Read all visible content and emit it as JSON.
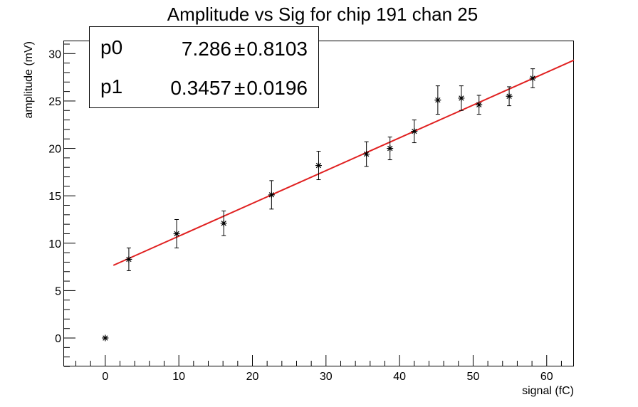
{
  "chart_data": {
    "type": "scatter",
    "title": "Amplitude vs Sig for chip 191 chan 25",
    "xlabel": "signal (fC)",
    "ylabel": "amplitude (mV)",
    "xlim": [
      -5.6,
      63.7
    ],
    "ylim": [
      -3.0,
      31.3
    ],
    "x_ticks": [
      0,
      10,
      20,
      30,
      40,
      50,
      60
    ],
    "y_ticks": [
      0,
      5,
      10,
      15,
      20,
      25,
      30
    ],
    "x_tick_labels": [
      "0",
      "10",
      "20",
      "30",
      "40",
      "50",
      "60"
    ],
    "y_tick_labels": [
      "0",
      "5",
      "10",
      "15",
      "20",
      "25",
      "30"
    ],
    "grid": false,
    "points": [
      {
        "x": 0.0,
        "y": 0.0,
        "err": 0.0
      },
      {
        "x": 3.2,
        "y": 8.3,
        "err": 1.2
      },
      {
        "x": 9.7,
        "y": 11.0,
        "err": 1.5
      },
      {
        "x": 16.1,
        "y": 12.1,
        "err": 1.3
      },
      {
        "x": 22.6,
        "y": 15.1,
        "err": 1.5
      },
      {
        "x": 29.0,
        "y": 18.2,
        "err": 1.5
      },
      {
        "x": 35.5,
        "y": 19.4,
        "err": 1.3
      },
      {
        "x": 38.7,
        "y": 20.0,
        "err": 1.2
      },
      {
        "x": 42.0,
        "y": 21.8,
        "err": 1.2
      },
      {
        "x": 45.2,
        "y": 25.1,
        "err": 1.5
      },
      {
        "x": 48.4,
        "y": 25.3,
        "err": 1.3
      },
      {
        "x": 50.8,
        "y": 24.6,
        "err": 1.0
      },
      {
        "x": 54.9,
        "y": 25.5,
        "err": 1.0
      },
      {
        "x": 58.1,
        "y": 27.4,
        "err": 1.0
      }
    ],
    "fit": {
      "p0": 7.286,
      "p1": 0.3457,
      "x_range": [
        1.1,
        63.7
      ],
      "color": "#e02020"
    },
    "stats_box": {
      "placement": "top-left",
      "rows": [
        {
          "name": "p0",
          "value": "7.286",
          "error": "0.8103"
        },
        {
          "name": "p1",
          "value": "0.3457",
          "error": "0.0196"
        }
      ],
      "pm_symbol": "±"
    }
  }
}
